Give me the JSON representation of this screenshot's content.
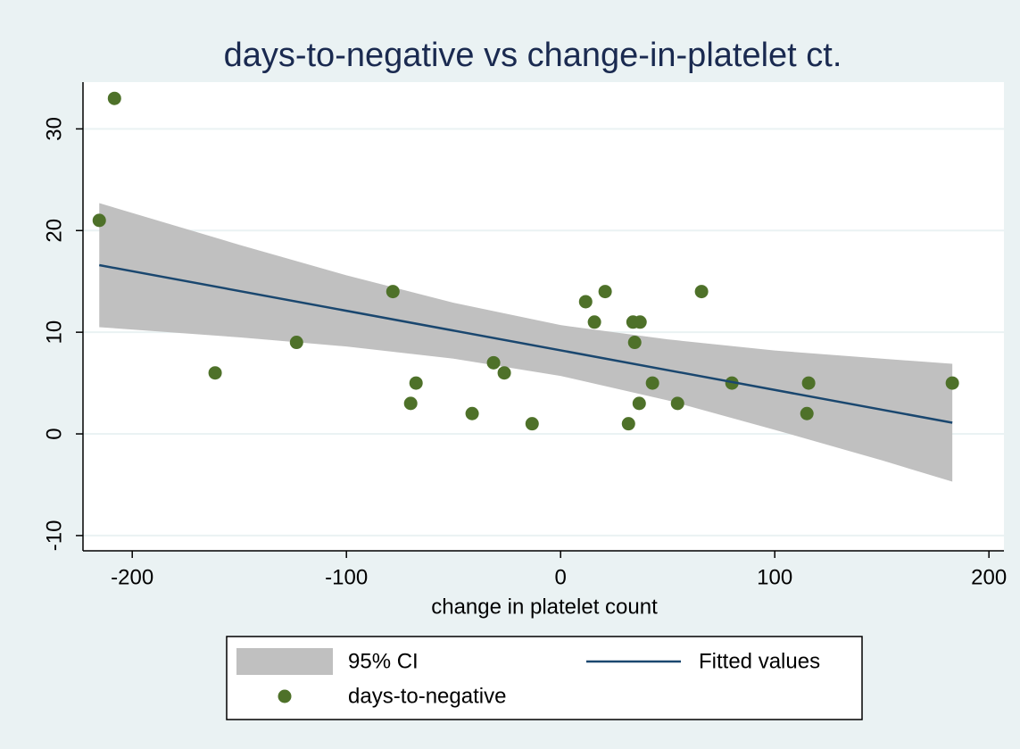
{
  "chart_data": {
    "type": "scatter",
    "title": "days-to-negative vs change-in-platelet ct.",
    "x_label": "change in platelet count",
    "xlim": [
      -223,
      207
    ],
    "xticks": [
      -200,
      -100,
      0,
      100,
      200
    ],
    "ylim": [
      -11.5,
      34.6
    ],
    "yticks": [
      -10,
      0,
      10,
      20,
      30
    ],
    "grid": true,
    "legend_position": "bottom",
    "series": [
      {
        "name": "95% CI",
        "type": "area",
        "color": "#c0c0c0",
        "x": [
          -215.4,
          -150,
          -100,
          -50,
          0,
          50,
          100,
          150,
          182.9
        ],
        "upper": [
          22.7,
          18.6,
          15.6,
          12.9,
          10.7,
          9.3,
          8.2,
          7.4,
          6.9
        ],
        "lower": [
          10.5,
          9.5,
          8.6,
          7.4,
          5.7,
          3.3,
          0.4,
          -2.6,
          -4.7
        ]
      },
      {
        "name": "Fitted values",
        "type": "line",
        "color": "#1a476f",
        "x": [
          -215.4,
          182.9
        ],
        "values": [
          16.6,
          1.1
        ]
      },
      {
        "name": "days-to-negative",
        "type": "scatter",
        "color": "#4e7129",
        "x": [
          -215.4,
          -208.3,
          -161.3,
          -123.3,
          -78.3,
          -70,
          -67.5,
          -41.3,
          -31.3,
          -26.3,
          -13.3,
          11.7,
          15.8,
          20.8,
          31.7,
          33.8,
          34.6,
          37.1,
          36.7,
          42.9,
          54.6,
          65.8,
          80,
          115,
          115.8,
          182.9
        ],
        "values": [
          21,
          33,
          6,
          9,
          14,
          3,
          5,
          2,
          7,
          6,
          1,
          13,
          11,
          14,
          1,
          11,
          9,
          11,
          3,
          5,
          3,
          14,
          5,
          2,
          5,
          5
        ]
      }
    ]
  }
}
